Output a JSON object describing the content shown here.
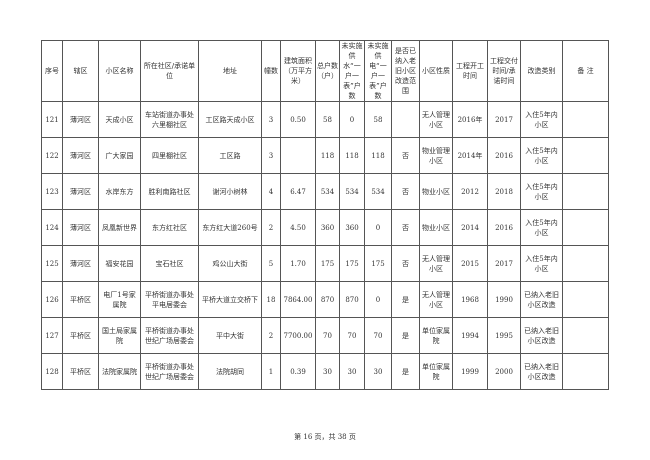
{
  "table": {
    "headers": [
      "序号",
      "辖区",
      "小区名称",
      "所在社区/承诺单位",
      "地址",
      "幢数",
      "建筑面积（万平方米）",
      "总户数（户）",
      "未实施供水“一户一表”户数",
      "未实施供电“一户一表”户数",
      "是否已纳入老旧小区改造范围",
      "小区性质",
      "工程开工时间",
      "工程交付时间/承诺时间",
      "改造类别",
      "备 注"
    ],
    "rows": [
      [
        "121",
        "薄河区",
        "天成小区",
        "车站街道办事处六里棚社区",
        "工区路天成小区",
        "3",
        "0.50",
        "58",
        "0",
        "58",
        "",
        "无人管理小区",
        "2016年",
        "2017",
        "入住5年内小区",
        ""
      ],
      [
        "122",
        "薄河区",
        "广大家园",
        "四里棚社区",
        "工区路",
        "3",
        "",
        "118",
        "118",
        "118",
        "否",
        "物业管理小区",
        "2014年",
        "2016",
        "入住5年内小区",
        ""
      ],
      [
        "123",
        "薄河区",
        "水岸东方",
        "胜利南路社区",
        "谢河小树林",
        "4",
        "6.47",
        "534",
        "534",
        "534",
        "否",
        "物业小区",
        "2012",
        "2018",
        "入住5年内小区",
        ""
      ],
      [
        "124",
        "薄河区",
        "凤凰新世界",
        "东方红社区",
        "东方红大道260号",
        "2",
        "4.50",
        "360",
        "360",
        "0",
        "否",
        "物业小区",
        "2014",
        "2016",
        "入住5年内小区",
        ""
      ],
      [
        "125",
        "薄河区",
        "福安花园",
        "宝石社区",
        "鸡公山大街",
        "5",
        "1.70",
        "175",
        "175",
        "175",
        "否",
        "无人管理小区",
        "2015",
        "2017",
        "入住5年内小区",
        ""
      ],
      [
        "126",
        "平桥区",
        "电厂1号家属院",
        "平桥街道办事处平电居委会",
        "平桥大道立交桥下",
        "18",
        "7864.00",
        "870",
        "870",
        "0",
        "是",
        "无人管理小区",
        "1968",
        "1990",
        "已纳入老旧小区改造",
        ""
      ],
      [
        "127",
        "平桥区",
        "国土局家属院",
        "平桥街道办事处世纪广场居委会",
        "平中大街",
        "2",
        "7700.00",
        "70",
        "70",
        "70",
        "是",
        "单位家属院",
        "1994",
        "1995",
        "已纳入老旧小区改造",
        ""
      ],
      [
        "128",
        "平桥区",
        "法院家属院",
        "平桥街道办事处世纪广场居委会",
        "法院胡同",
        "1",
        "0.39",
        "30",
        "30",
        "30",
        "是",
        "单位家属院",
        "1999",
        "2000",
        "已纳入老旧小区改造",
        ""
      ]
    ]
  },
  "footer": {
    "page_label": "第 16 页，共 38 页"
  }
}
